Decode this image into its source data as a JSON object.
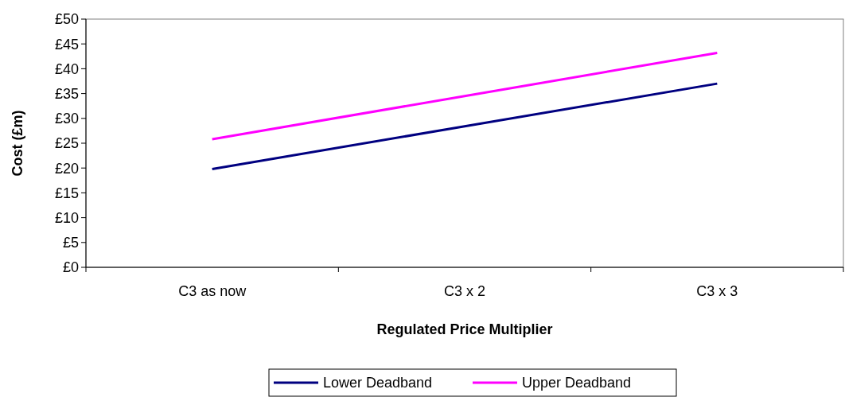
{
  "chart_data": {
    "type": "line",
    "xlabel": "Regulated Price Multiplier",
    "ylabel": "Cost (£m)",
    "categories": [
      "C3 as now",
      "C3 x 2",
      "C3 x 3"
    ],
    "series": [
      {
        "name": "Lower Deadband",
        "color": "#000080",
        "values": [
          19.8,
          28.4,
          37.0
        ]
      },
      {
        "name": "Upper Deadband",
        "color": "#ff00ff",
        "values": [
          25.8,
          34.5,
          43.2
        ]
      }
    ],
    "ylim": [
      0,
      50
    ],
    "yticks": [
      {
        "value": 0,
        "label": "£0"
      },
      {
        "value": 5,
        "label": "£5"
      },
      {
        "value": 10,
        "label": "£10"
      },
      {
        "value": 15,
        "label": "£15"
      },
      {
        "value": 20,
        "label": "£20"
      },
      {
        "value": 25,
        "label": "£25"
      },
      {
        "value": 30,
        "label": "£30"
      },
      {
        "value": 35,
        "label": "£35"
      },
      {
        "value": 40,
        "label": "£40"
      },
      {
        "value": 45,
        "label": "£45"
      },
      {
        "value": 50,
        "label": "£50"
      }
    ],
    "grid": false,
    "legend": "bottom",
    "marker": "none",
    "line_style": "solid"
  }
}
